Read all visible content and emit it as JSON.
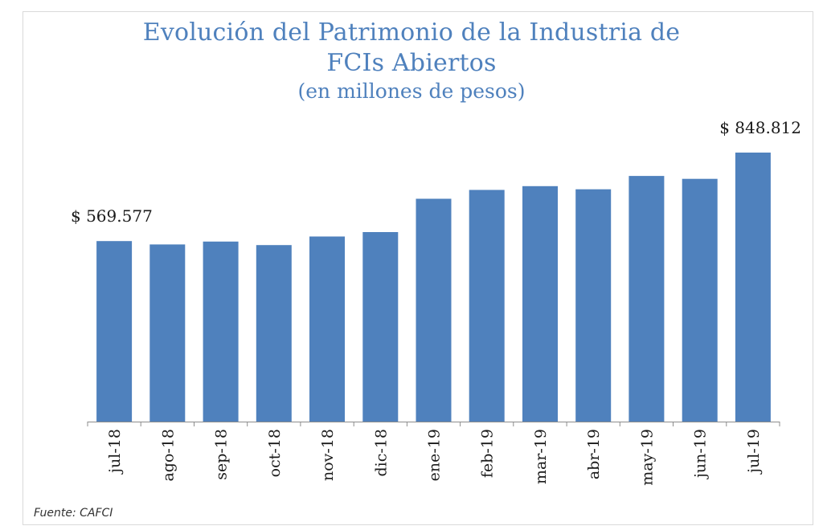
{
  "chart_data": {
    "type": "bar",
    "title_line1": "Evolución del Patrimonio de la Industria de",
    "title_line2": "FCIs Abiertos",
    "subtitle": "(en millones de pesos)",
    "categories": [
      "jul-18",
      "ago-18",
      "sep-18",
      "oct-18",
      "nov-18",
      "dic-18",
      "ene-19",
      "feb-19",
      "mar-19",
      "abr-19",
      "may-19",
      "jun-19",
      "jul-19"
    ],
    "values": [
      569577,
      559000,
      568000,
      557000,
      584000,
      598000,
      703000,
      731000,
      743000,
      733000,
      775000,
      766000,
      848812
    ],
    "data_labels": [
      {
        "index": 0,
        "text": "$ 569.577"
      },
      {
        "index": 12,
        "text": "$ 848.812"
      }
    ],
    "xlabel": "",
    "ylabel": "",
    "ylim": [
      0,
      848812
    ],
    "grid": false,
    "bar_color": "#4f81bd",
    "title_color": "#4f81bd"
  },
  "source_note": "Fuente: CAFCI"
}
